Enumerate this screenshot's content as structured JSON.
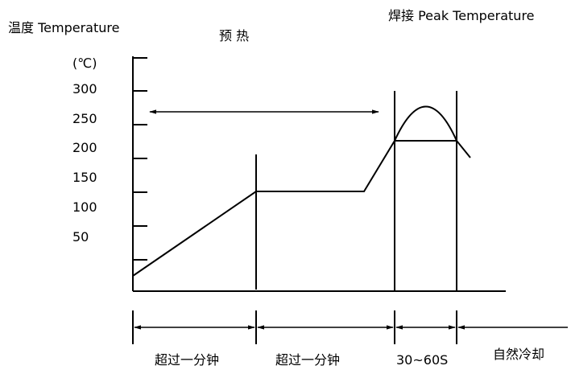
{
  "labels": {
    "axis_title": "温度 Temperature",
    "unit": "(℃)",
    "preheat": "预 热",
    "peak": "焊接 Peak Temperature"
  },
  "y_ticks": [
    "300",
    "250",
    "200",
    "150",
    "100",
    "50"
  ],
  "phases": [
    "超过一分钟",
    "超过一分钟",
    "30~60S",
    "自然冷却"
  ]
}
